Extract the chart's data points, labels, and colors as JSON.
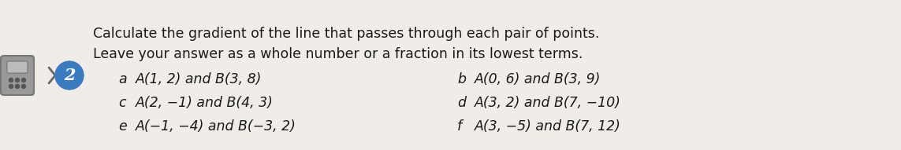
{
  "title_line1": "Calculate the gradient of the line that passes through each pair of points.",
  "title_line2": "Leave your answer as a whole number or a fraction in its lowest terms.",
  "number": "2",
  "items": [
    {
      "label": "a",
      "text": "A(1, 2) and B(3, 8)"
    },
    {
      "label": "b",
      "text": "A(0, 6) and B(3, 9)"
    },
    {
      "label": "c",
      "text": "A(2, −1) and B(4, 3)"
    },
    {
      "label": "d",
      "text": "A(3, 2) and B(7, −10)"
    },
    {
      "label": "e",
      "text": "A(−1, −4) and B(−3, 2)"
    },
    {
      "label": "f",
      "text": "A(3, −5) and B(7, 12)"
    }
  ],
  "bg_color": "#f0ede8",
  "text_color": "#1a1a1a",
  "label_color": "#1a1a1a",
  "circle_color": "#3a7abf",
  "circle_text_color": "#ffffff",
  "title_fontsize": 12.5,
  "item_fontsize": 12.5,
  "label_fontsize": 12.5
}
